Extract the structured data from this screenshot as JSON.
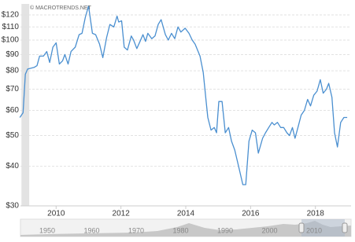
{
  "chart_data": {
    "type": "line",
    "watermark": "© MACROTRENDS.NET",
    "log_scale": true,
    "grid": true,
    "x": [
      2008.88,
      2008.98,
      2009.05,
      2009.12,
      2009.32,
      2009.41,
      2009.49,
      2009.61,
      2009.71,
      2009.8,
      2009.9,
      2010.0,
      2010.1,
      2010.2,
      2010.27,
      2010.37,
      2010.46,
      2010.59,
      2010.71,
      2010.8,
      2010.9,
      2011.0,
      2011.12,
      2011.22,
      2011.34,
      2011.44,
      2011.56,
      2011.66,
      2011.78,
      2011.88,
      2011.93,
      2012.02,
      2012.1,
      2012.2,
      2012.32,
      2012.39,
      2012.49,
      2012.59,
      2012.68,
      2012.76,
      2012.83,
      2012.95,
      2013.05,
      2013.15,
      2013.24,
      2013.37,
      2013.46,
      2013.56,
      2013.66,
      2013.76,
      2013.85,
      2013.98,
      2014.1,
      2014.2,
      2014.29,
      2014.44,
      2014.54,
      2014.63,
      2014.68,
      2014.78,
      2014.88,
      2014.95,
      2015.02,
      2015.12,
      2015.22,
      2015.32,
      2015.41,
      2015.51,
      2015.63,
      2015.76,
      2015.85,
      2015.95,
      2016.05,
      2016.15,
      2016.24,
      2016.37,
      2016.46,
      2016.56,
      2016.66,
      2016.73,
      2016.83,
      2016.93,
      2017.02,
      2017.12,
      2017.2,
      2017.29,
      2017.37,
      2017.46,
      2017.56,
      2017.66,
      2017.76,
      2017.85,
      2017.95,
      2018.05,
      2018.15,
      2018.24,
      2018.34,
      2018.41,
      2018.51,
      2018.59,
      2018.68,
      2018.78,
      2018.88,
      2018.98
    ],
    "series": [
      {
        "color": "#4a8fd0",
        "values": [
          57,
          59,
          78,
          81,
          82,
          83,
          89,
          89,
          92,
          85,
          95,
          98,
          84,
          86,
          90,
          84,
          92,
          95,
          104,
          105,
          118,
          128,
          105,
          104,
          97,
          88,
          102,
          112,
          110,
          119,
          114,
          115,
          95,
          93,
          103,
          100,
          94,
          99,
          104,
          99,
          105,
          101,
          103,
          112,
          116,
          104,
          100,
          105,
          101,
          110,
          106,
          109,
          105,
          100,
          97,
          89,
          79,
          64,
          57,
          52,
          53,
          51,
          64,
          64,
          51,
          53,
          48,
          45,
          40,
          35,
          35,
          48,
          52,
          51,
          44,
          49,
          51,
          53,
          55,
          54,
          55,
          53,
          53,
          51,
          50,
          53,
          49,
          53,
          58,
          60,
          65,
          62,
          67,
          69,
          75,
          68,
          70,
          73,
          66,
          51,
          46,
          55,
          57,
          57
        ]
      }
    ],
    "xlim": [
      2008.9,
      2019.1
    ],
    "xticks": [
      2010,
      2012,
      2014,
      2016,
      2018
    ],
    "ylim": [
      30,
      130
    ],
    "yticks": [
      {
        "value": 30,
        "label": "$30"
      },
      {
        "value": 40,
        "label": "$40"
      },
      {
        "value": 50,
        "label": "$50"
      },
      {
        "value": 60,
        "label": "$60"
      },
      {
        "value": 70,
        "label": "$70"
      },
      {
        "value": 80,
        "label": "$80"
      },
      {
        "value": 90,
        "label": "$90"
      },
      {
        "value": 100,
        "label": "$100"
      },
      {
        "value": 110,
        "label": "$110"
      },
      {
        "value": 120,
        "label": "$120"
      }
    ],
    "shaded_band": [
      2008.93,
      2009.17
    ],
    "navigator_labels": [
      "1950",
      "1960",
      "1970",
      "1980",
      "1990",
      "2000",
      "2010"
    ]
  }
}
